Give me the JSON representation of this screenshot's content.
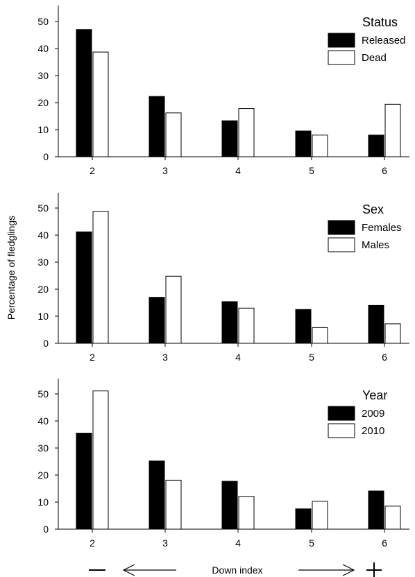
{
  "figure": {
    "ylabel": "Percentage of fledglings",
    "xlabel": "Down index",
    "minus_label": "—",
    "plus_label": "+"
  },
  "chart_data": [
    {
      "type": "bar",
      "categories": [
        "2",
        "3",
        "4",
        "5",
        "6"
      ],
      "ylim": [
        0,
        55
      ],
      "yticks": [
        0,
        10,
        20,
        30,
        40,
        50
      ],
      "legend_title": "Status",
      "legend_position": "top-right",
      "series": [
        {
          "name": "Released",
          "fill": "#000000",
          "values": [
            47,
            22.3,
            13.3,
            9.5,
            8
          ]
        },
        {
          "name": "Dead",
          "fill": "#ffffff",
          "values": [
            38.7,
            16.2,
            17.8,
            8,
            19.4
          ]
        }
      ]
    },
    {
      "type": "bar",
      "categories": [
        "2",
        "3",
        "4",
        "5",
        "6"
      ],
      "ylim": [
        0,
        55
      ],
      "yticks": [
        0,
        10,
        20,
        30,
        40,
        50
      ],
      "legend_title": "Sex",
      "legend_position": "top-right",
      "series": [
        {
          "name": "Females",
          "fill": "#000000",
          "values": [
            41.2,
            17,
            15.4,
            12.5,
            14
          ]
        },
        {
          "name": "Males",
          "fill": "#ffffff",
          "values": [
            48.8,
            24.8,
            13,
            5.8,
            7.2
          ]
        }
      ]
    },
    {
      "type": "bar",
      "categories": [
        "2",
        "3",
        "4",
        "5",
        "6"
      ],
      "ylim": [
        0,
        55
      ],
      "yticks": [
        0,
        10,
        20,
        30,
        40,
        50
      ],
      "legend_title": "Year",
      "legend_position": "top-right",
      "series": [
        {
          "name": "2009",
          "fill": "#000000",
          "values": [
            35.5,
            25.2,
            17.7,
            7.5,
            14.1
          ]
        },
        {
          "name": "2010",
          "fill": "#ffffff",
          "values": [
            51.1,
            18.1,
            12.1,
            10.3,
            8.5
          ]
        }
      ]
    }
  ]
}
